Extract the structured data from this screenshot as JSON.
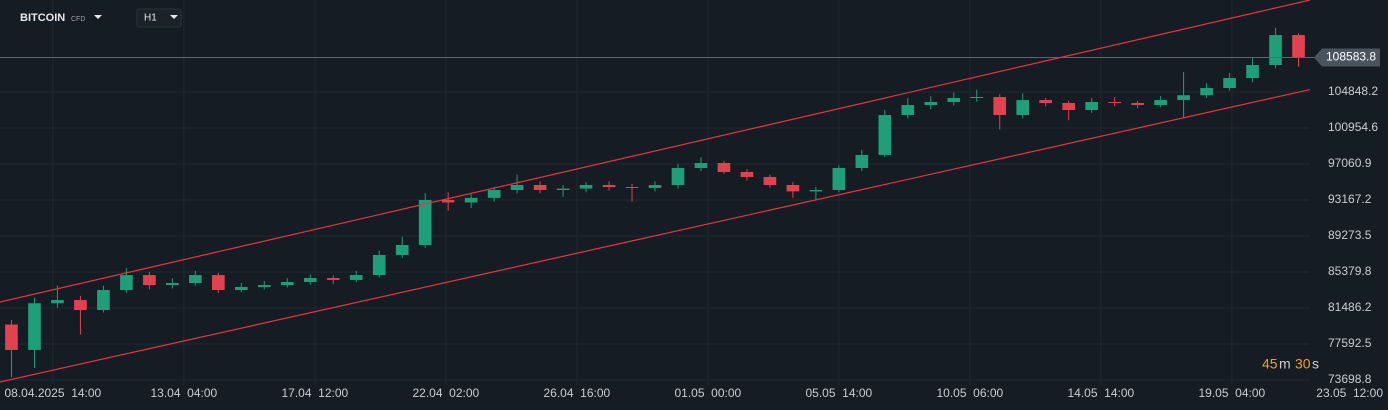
{
  "toolbar": {
    "symbol": "BITCOIN",
    "symbol_tag": "CFD",
    "timeframe": "H1"
  },
  "countdown": {
    "minutes": 45,
    "minutes_unit": "m",
    "seconds": 30,
    "seconds_unit": "s"
  },
  "chart_data": {
    "type": "candlestick",
    "up_color": "#1f9e7a",
    "down_color": "#e0434f",
    "grid": true,
    "open": [
      79700,
      76950,
      82000,
      82350,
      81270,
      83430,
      85050,
      83970,
      84190,
      85050,
      83430,
      83760,
      83970,
      84300,
      84730,
      84520,
      85050,
      87220,
      88300,
      93170,
      92900,
      93400,
      94250,
      94790,
      94250,
      94400,
      94790,
      94570,
      94470,
      94790,
      96630,
      97170,
      96200,
      95660,
      94790,
      94100,
      94250,
      96630,
      98040,
      102360,
      103440,
      103770,
      104200,
      104310,
      102360,
      103980,
      103660,
      102900,
      103770,
      103660,
      103440,
      103980,
      104500,
      105280,
      106360,
      107770,
      111010
    ],
    "high": [
      80200,
      82600,
      83900,
      82800,
      83900,
      85800,
      85400,
      84700,
      85500,
      85300,
      84200,
      84400,
      84700,
      85100,
      85000,
      85500,
      87700,
      89200,
      93900,
      94000,
      93800,
      94600,
      95900,
      95200,
      94800,
      95100,
      95200,
      94900,
      95200,
      97100,
      97800,
      97400,
      96500,
      95900,
      95100,
      94600,
      96900,
      98600,
      102900,
      104200,
      104400,
      104800,
      105100,
      104600,
      104700,
      104200,
      103900,
      104200,
      104300,
      103900,
      104400,
      107000,
      105800,
      106900,
      108600,
      111800,
      111200
    ],
    "low": [
      74000,
      75000,
      81500,
      78600,
      81000,
      83100,
      83500,
      83600,
      83900,
      83100,
      83200,
      83500,
      83700,
      84000,
      84100,
      84300,
      84800,
      86900,
      88000,
      92000,
      92300,
      93000,
      93900,
      93900,
      93500,
      94000,
      94200,
      93000,
      94100,
      94400,
      96300,
      96000,
      95300,
      94500,
      93400,
      93200,
      94000,
      96300,
      97800,
      102000,
      103000,
      103400,
      103800,
      100800,
      102000,
      103300,
      101800,
      102600,
      103300,
      103100,
      103200,
      102000,
      104200,
      105000,
      105900,
      107400,
      107600
    ],
    "close": [
      76950,
      82000,
      82350,
      81270,
      83430,
      85050,
      83970,
      84190,
      85050,
      83430,
      83760,
      83970,
      84300,
      84730,
      84520,
      85050,
      87220,
      88300,
      93170,
      92900,
      93400,
      94250,
      94790,
      94250,
      94400,
      94790,
      94570,
      94470,
      94790,
      96630,
      97170,
      96200,
      95660,
      94790,
      94100,
      94250,
      96630,
      98040,
      102360,
      103440,
      103770,
      104200,
      104310,
      102360,
      103980,
      103660,
      102900,
      103770,
      103660,
      103440,
      103980,
      104500,
      105280,
      106360,
      107770,
      111010,
      108583.8
    ],
    "last_price": 108583.8,
    "channel_color": "#e8343f",
    "channel_upper": [
      82135,
      114800
    ],
    "channel_lower": [
      73483,
      105110
    ],
    "xlim": [
      -0.5,
      56.5
    ],
    "ylim": [
      73158,
      114800
    ],
    "yticks": [
      73698.8,
      77592.5,
      81486.2,
      85379.8,
      89273.5,
      93167.2,
      97060.9,
      100954.6,
      104848.2
    ],
    "xticks": [
      {
        "value": 1.8,
        "label": "08.04.2025  14:00"
      },
      {
        "value": 7.5,
        "label": "13.04  04:00"
      },
      {
        "value": 13.2,
        "label": "17.04  12:00"
      },
      {
        "value": 18.9,
        "label": "22.04  02:00"
      },
      {
        "value": 24.6,
        "label": "26.04  16:00"
      },
      {
        "value": 30.3,
        "label": "01.05  00:00"
      },
      {
        "value": 36,
        "label": "05.05  14:00"
      },
      {
        "value": 41.7,
        "label": "10.05  06:00"
      },
      {
        "value": 47.4,
        "label": "14.05  14:00"
      },
      {
        "value": 53.1,
        "label": "19.05  04:00"
      },
      {
        "value": 58.8,
        "label": "23.05  12:00"
      }
    ]
  }
}
